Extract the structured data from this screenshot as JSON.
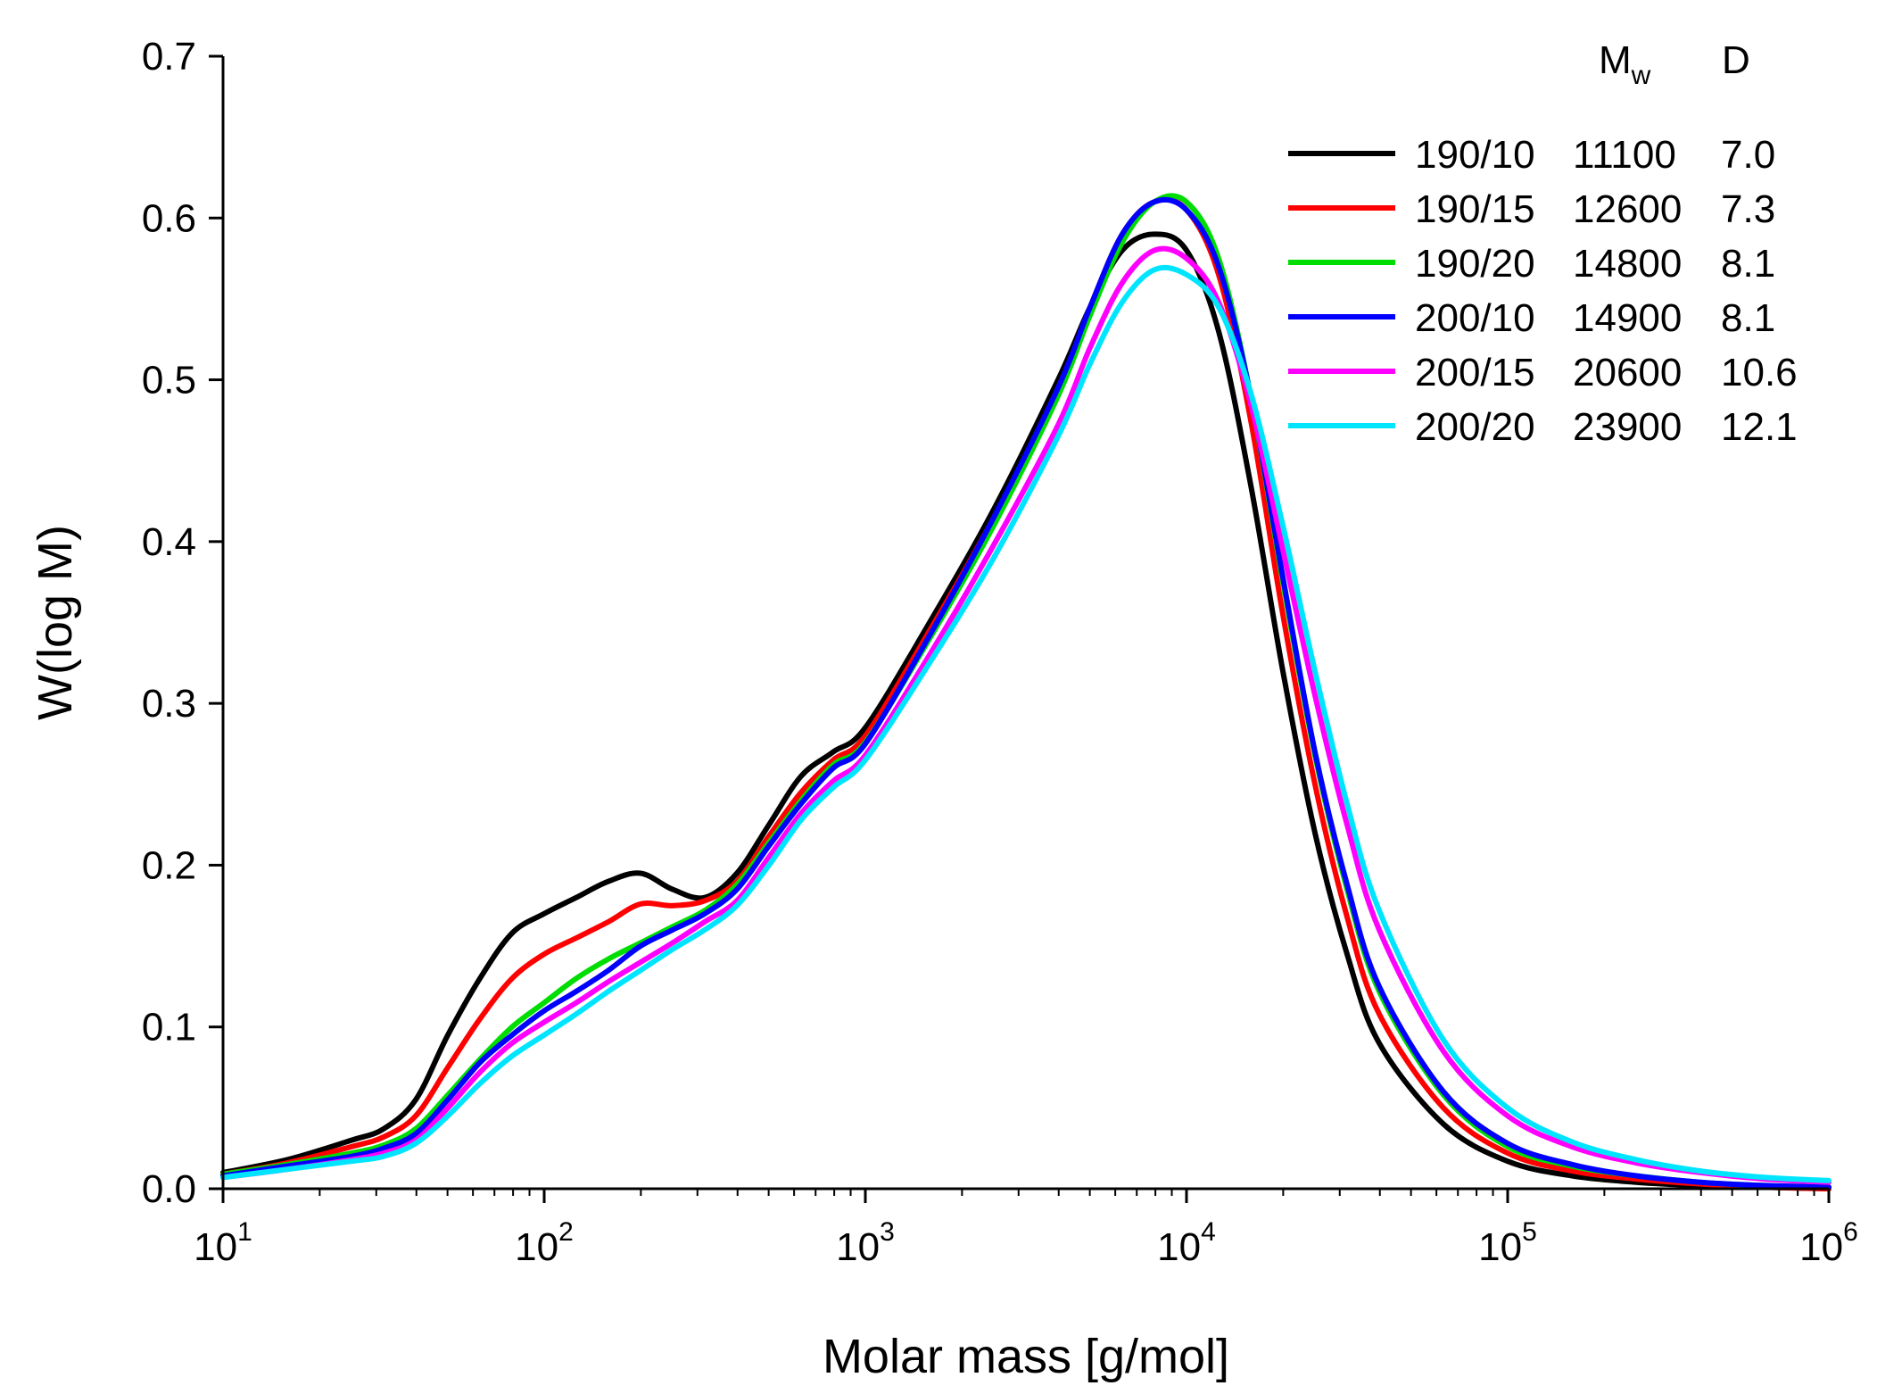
{
  "chart_data": {
    "type": "line",
    "xlabel": "Molar mass [g/mol]",
    "ylabel": "W(log M)",
    "xscale": "log",
    "xlim": [
      10,
      1000000
    ],
    "ylim": [
      0.0,
      0.7
    ],
    "x_ticks": [
      {
        "base": "10",
        "exp": "1"
      },
      {
        "base": "10",
        "exp": "2"
      },
      {
        "base": "10",
        "exp": "3"
      },
      {
        "base": "10",
        "exp": "4"
      },
      {
        "base": "10",
        "exp": "5"
      },
      {
        "base": "10",
        "exp": "6"
      }
    ],
    "y_ticks": [
      "0.0",
      "0.1",
      "0.2",
      "0.3",
      "0.4",
      "0.5",
      "0.6",
      "0.7"
    ],
    "legend": {
      "position": "top-right",
      "header_mw": "M",
      "header_mw_sub": "w",
      "header_d": "D"
    },
    "log_m": [
      1.0,
      1.2,
      1.4,
      1.5,
      1.6,
      1.7,
      1.8,
      1.9,
      2.0,
      2.1,
      2.2,
      2.3,
      2.4,
      2.5,
      2.6,
      2.7,
      2.8,
      2.9,
      3.0,
      3.2,
      3.4,
      3.6,
      3.7,
      3.8,
      3.9,
      4.0,
      4.1,
      4.2,
      4.3,
      4.4,
      4.5,
      4.6,
      4.8,
      5.0,
      5.2,
      5.4,
      5.6,
      5.8,
      6.0
    ],
    "series": [
      {
        "name": "190/10",
        "mw": "11100",
        "d": "7.0",
        "color": "#000000",
        "values": [
          0.01,
          0.018,
          0.03,
          0.037,
          0.055,
          0.095,
          0.13,
          0.158,
          0.17,
          0.18,
          0.19,
          0.195,
          0.185,
          0.18,
          0.195,
          0.225,
          0.255,
          0.27,
          0.285,
          0.35,
          0.42,
          0.5,
          0.545,
          0.58,
          0.59,
          0.58,
          0.53,
          0.435,
          0.32,
          0.22,
          0.145,
          0.09,
          0.04,
          0.017,
          0.008,
          0.004,
          0.002,
          0.001,
          0.0
        ]
      },
      {
        "name": "190/15",
        "mw": "12600",
        "d": "7.3",
        "color": "#ff0000",
        "values": [
          0.009,
          0.016,
          0.026,
          0.032,
          0.045,
          0.075,
          0.105,
          0.13,
          0.145,
          0.155,
          0.165,
          0.176,
          0.175,
          0.178,
          0.19,
          0.218,
          0.245,
          0.265,
          0.28,
          0.345,
          0.415,
          0.495,
          0.545,
          0.59,
          0.61,
          0.605,
          0.565,
          0.475,
          0.355,
          0.25,
          0.168,
          0.108,
          0.05,
          0.022,
          0.011,
          0.006,
          0.003,
          0.001,
          0.0
        ]
      },
      {
        "name": "190/20",
        "mw": "14800",
        "d": "8.1",
        "color": "#00dd00",
        "values": [
          0.009,
          0.015,
          0.022,
          0.027,
          0.037,
          0.058,
          0.08,
          0.1,
          0.115,
          0.13,
          0.142,
          0.152,
          0.162,
          0.172,
          0.188,
          0.214,
          0.24,
          0.262,
          0.276,
          0.34,
          0.41,
          0.49,
          0.54,
          0.585,
          0.61,
          0.61,
          0.575,
          0.49,
          0.375,
          0.268,
          0.185,
          0.122,
          0.058,
          0.026,
          0.014,
          0.008,
          0.004,
          0.002,
          0.001
        ]
      },
      {
        "name": "200/10",
        "mw": "14900",
        "d": "8.1",
        "color": "#0000ff",
        "values": [
          0.008,
          0.014,
          0.02,
          0.025,
          0.034,
          0.055,
          0.078,
          0.095,
          0.11,
          0.122,
          0.135,
          0.15,
          0.16,
          0.17,
          0.185,
          0.212,
          0.238,
          0.26,
          0.275,
          0.342,
          0.415,
          0.495,
          0.545,
          0.59,
          0.61,
          0.605,
          0.57,
          0.49,
          0.378,
          0.27,
          0.188,
          0.125,
          0.06,
          0.028,
          0.015,
          0.008,
          0.004,
          0.002,
          0.001
        ]
      },
      {
        "name": "200/15",
        "mw": "20600",
        "d": "10.6",
        "color": "#ff00ff",
        "values": [
          0.007,
          0.012,
          0.018,
          0.022,
          0.03,
          0.05,
          0.072,
          0.09,
          0.103,
          0.115,
          0.128,
          0.14,
          0.152,
          0.165,
          0.178,
          0.205,
          0.232,
          0.252,
          0.268,
          0.33,
          0.398,
          0.472,
          0.52,
          0.56,
          0.58,
          0.575,
          0.548,
          0.485,
          0.395,
          0.305,
          0.225,
          0.16,
          0.085,
          0.045,
          0.026,
          0.016,
          0.01,
          0.006,
          0.004
        ]
      },
      {
        "name": "200/20",
        "mw": "23900",
        "d": "12.1",
        "color": "#00e5ff",
        "values": [
          0.007,
          0.012,
          0.017,
          0.02,
          0.028,
          0.045,
          0.065,
          0.082,
          0.095,
          0.108,
          0.122,
          0.135,
          0.148,
          0.16,
          0.175,
          0.2,
          0.228,
          0.248,
          0.265,
          0.325,
          0.39,
          0.465,
          0.51,
          0.548,
          0.568,
          0.565,
          0.545,
          0.492,
          0.41,
          0.32,
          0.238,
          0.172,
          0.092,
          0.05,
          0.029,
          0.018,
          0.011,
          0.007,
          0.005
        ]
      }
    ]
  }
}
